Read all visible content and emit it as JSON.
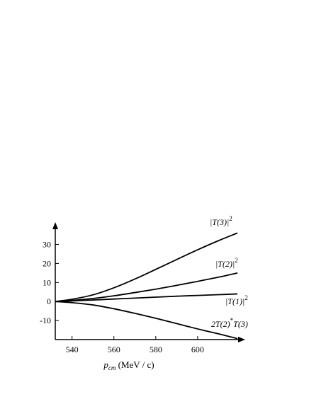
{
  "chart_data": {
    "type": "line",
    "title": "",
    "xlabel_var": "p",
    "xlabel_sub": "cm",
    "xlabel_unit": " (MeV / c)",
    "xlim": [
      532,
      620
    ],
    "ylim": [
      -20,
      38
    ],
    "xticks": [
      540,
      560,
      580,
      600
    ],
    "yticks": [
      -10,
      0,
      10,
      20,
      30
    ],
    "grid": false,
    "series": [
      {
        "name": "|T(3)|²",
        "label_parts": [
          "|T(3)|",
          "2",
          ""
        ],
        "x": [
          532,
          540,
          550,
          560,
          570,
          580,
          590,
          600,
          610,
          619
        ],
        "y": [
          0,
          1.2,
          3.5,
          7.2,
          11.8,
          16.9,
          22.1,
          27.2,
          32.0,
          36.0
        ]
      },
      {
        "name": "|T(2)|²",
        "label_parts": [
          "|T(2)|",
          "2",
          ""
        ],
        "x": [
          532,
          540,
          550,
          560,
          570,
          580,
          590,
          600,
          610,
          619
        ],
        "y": [
          0,
          0.6,
          1.6,
          3.0,
          4.7,
          6.5,
          8.5,
          10.6,
          12.8,
          15.0
        ]
      },
      {
        "name": "|T(1)|²",
        "label_parts": [
          "|T(1)|",
          "2",
          ""
        ],
        "x": [
          532,
          540,
          550,
          560,
          570,
          580,
          590,
          600,
          610,
          619
        ],
        "y": [
          0,
          0.3,
          0.8,
          1.3,
          1.8,
          2.3,
          2.8,
          3.2,
          3.6,
          4.0
        ]
      },
      {
        "name": "2T(2)*T(3)",
        "label_parts": [
          "2T(2)",
          "*",
          "T(3)"
        ],
        "x": [
          532,
          540,
          550,
          560,
          570,
          580,
          590,
          600,
          610,
          619
        ],
        "y": [
          0,
          -0.6,
          -1.8,
          -3.8,
          -6.2,
          -8.8,
          -11.6,
          -14.4,
          -17.0,
          -19.5
        ]
      }
    ]
  }
}
